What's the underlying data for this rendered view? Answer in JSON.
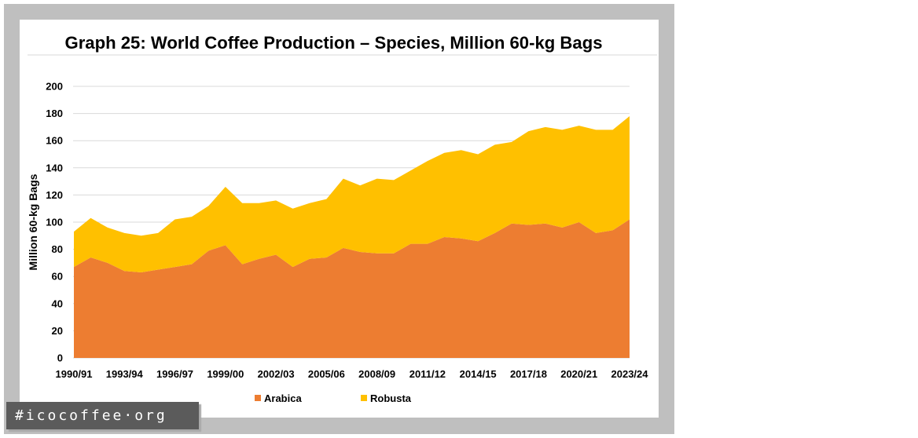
{
  "chart_data": {
    "type": "area",
    "stacked": true,
    "title": "Graph 25: World Coffee Production – Species, Million 60-kg Bags",
    "ylabel": "Million 60-kg Bags",
    "x": [
      1990,
      1991,
      1992,
      1993,
      1994,
      1995,
      1996,
      1997,
      1998,
      1999,
      2000,
      2001,
      2002,
      2003,
      2004,
      2005,
      2006,
      2007,
      2008,
      2009,
      2010,
      2011,
      2012,
      2013,
      2014,
      2015,
      2016,
      2017,
      2018,
      2019,
      2020,
      2021,
      2022,
      2023
    ],
    "x_ticks": [
      1990,
      1993,
      1996,
      1999,
      2002,
      2005,
      2008,
      2011,
      2014,
      2017,
      2020,
      2023
    ],
    "x_tick_labels": [
      "1990/91",
      "1993/94",
      "1996/97",
      "1999/00",
      "2002/03",
      "2005/06",
      "2008/09",
      "2011/12",
      "2014/15",
      "2017/18",
      "2020/21",
      "2023/24"
    ],
    "ylim": [
      0,
      200
    ],
    "y_ticks": [
      0,
      20,
      40,
      60,
      80,
      100,
      120,
      140,
      160,
      180,
      200
    ],
    "grid": true,
    "legend_position": "bottom",
    "series": [
      {
        "name": "Arabica",
        "color": "#ED7D31",
        "values": [
          67,
          74,
          70,
          64,
          63,
          65,
          67,
          69,
          79,
          83,
          69,
          73,
          76,
          67,
          73,
          74,
          81,
          78,
          77,
          77,
          84,
          84,
          89,
          88,
          86,
          92,
          99,
          98,
          99,
          96,
          100,
          92,
          94,
          102
        ]
      },
      {
        "name": "Robusta",
        "color": "#FFC000",
        "values": [
          26,
          29,
          26,
          28,
          27,
          27,
          35,
          35,
          33,
          43,
          45,
          41,
          40,
          43,
          41,
          43,
          51,
          49,
          55,
          54,
          54,
          61,
          62,
          65,
          64,
          65,
          60,
          69,
          71,
          72,
          71,
          76,
          74,
          76
        ]
      }
    ]
  },
  "badge": {
    "text": "#icocoffee·org"
  }
}
